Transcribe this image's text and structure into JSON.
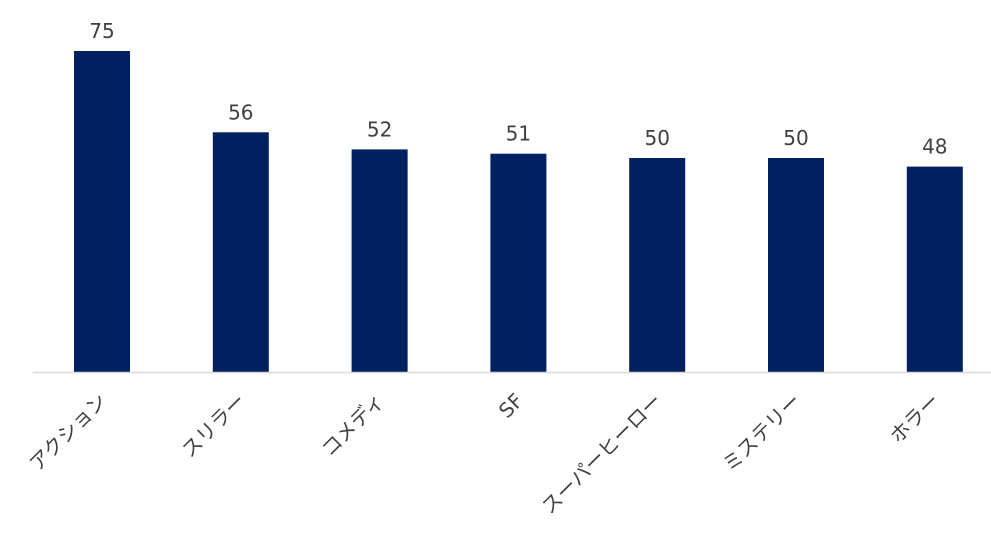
{
  "chart_data": {
    "type": "bar",
    "categories": [
      "アクション",
      "スリラー",
      "コメディ",
      "SF",
      "スーパーヒーロー",
      "ミステリー",
      "ホラー"
    ],
    "values": [
      75,
      56,
      52,
      51,
      50,
      50,
      48
    ],
    "title": "",
    "xlabel": "",
    "ylabel": "",
    "ylim": [
      0,
      75
    ],
    "grid": false,
    "legend": "none",
    "data_labels": true,
    "bar_color": "#002060",
    "axis_color": "#d9d9d9",
    "label_color": "#404040"
  }
}
